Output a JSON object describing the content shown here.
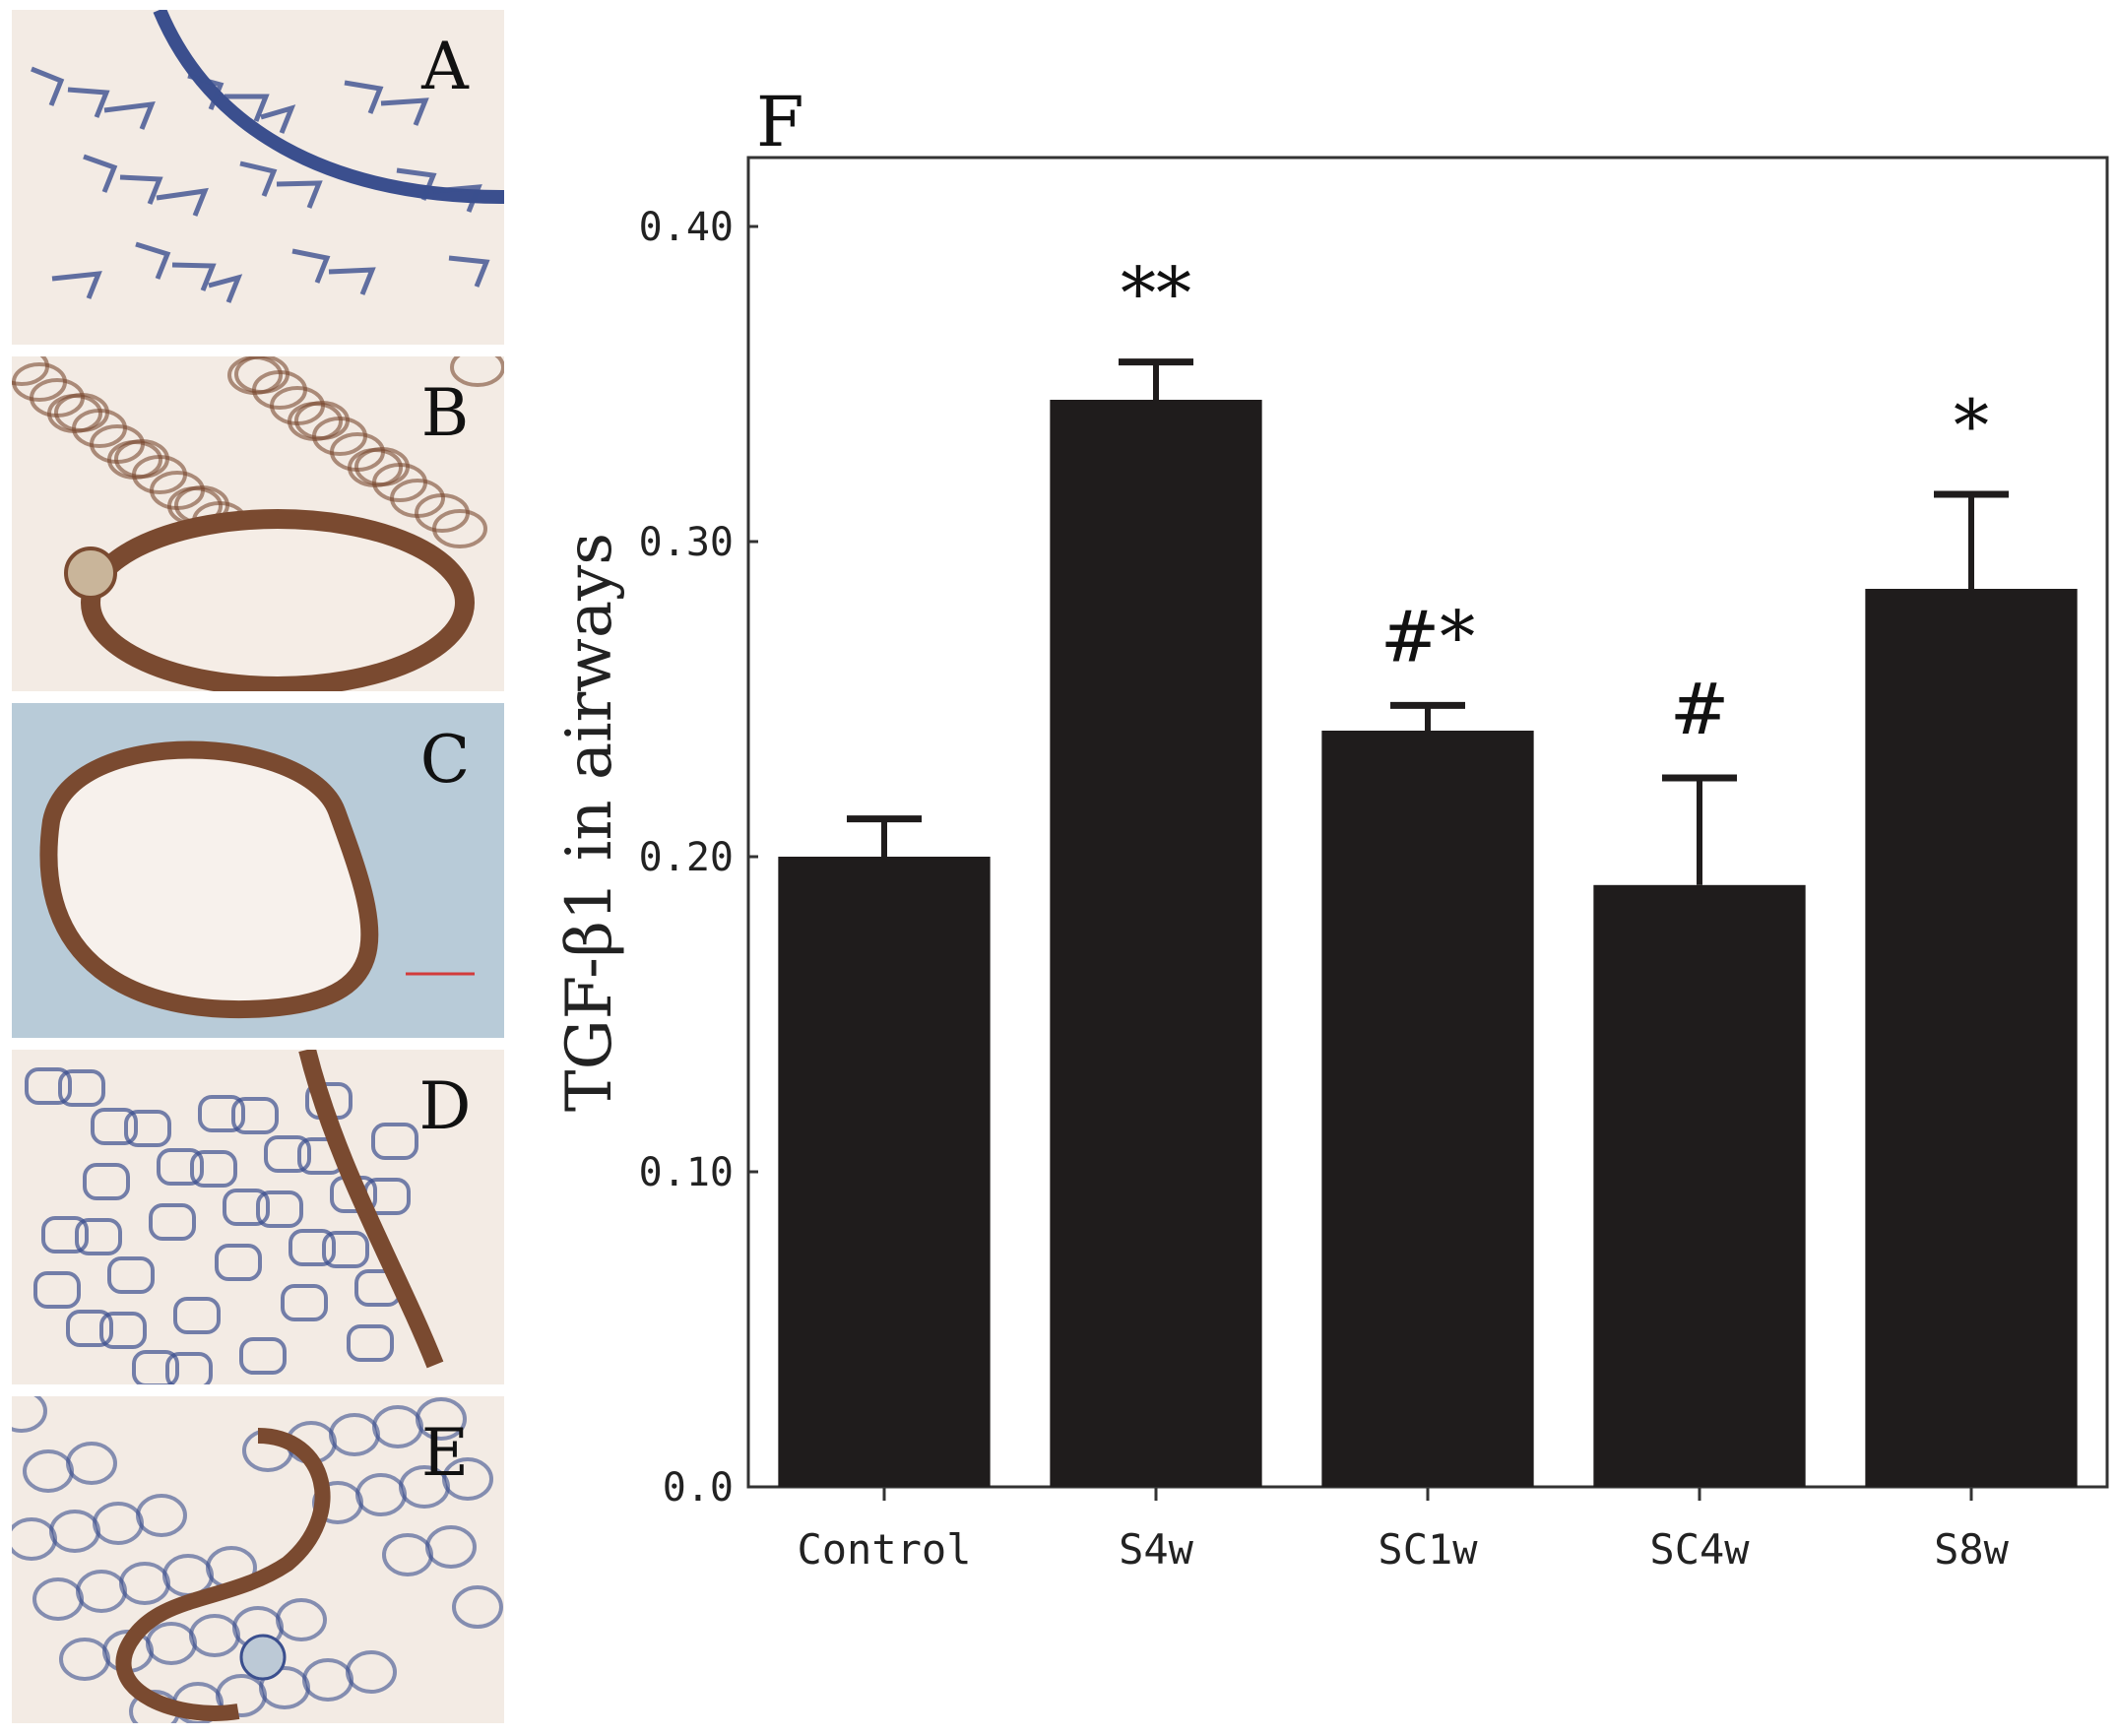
{
  "panels": [
    {
      "letter": "A",
      "tone": "blue"
    },
    {
      "letter": "B",
      "tone": "brown"
    },
    {
      "letter": "C",
      "tone": "mixed"
    },
    {
      "letter": "D",
      "tone": "blue"
    },
    {
      "letter": "E",
      "tone": "blue"
    }
  ],
  "colors": {
    "bar": "#1f1c1c",
    "tissue_bg": "#f3ebe4",
    "stain_blue": "#3b4f8e",
    "stain_brown": "#7a4a30",
    "stain_cyan": "#4b8fc4"
  },
  "chart_data": {
    "type": "bar",
    "panel_letter": "F",
    "title": "",
    "xlabel": "",
    "ylabel": "TGF-β1 in airways",
    "ylim": [
      0.0,
      0.42
    ],
    "yticks": [
      0.0,
      0.1,
      0.2,
      0.3,
      0.4
    ],
    "ytick_labels": [
      "0.0",
      "0.10",
      "0.20",
      "0.30",
      "0.40"
    ],
    "categories": [
      "Control",
      "S4w",
      "SC1w",
      "SC4w",
      "S8w"
    ],
    "values": [
      0.2,
      0.345,
      0.24,
      0.191,
      0.285
    ],
    "errors": [
      0.012,
      0.012,
      0.008,
      0.034,
      0.03
    ],
    "annotations": [
      "",
      "**",
      "#*",
      "#",
      "*"
    ],
    "grid": false,
    "legend": "none"
  }
}
